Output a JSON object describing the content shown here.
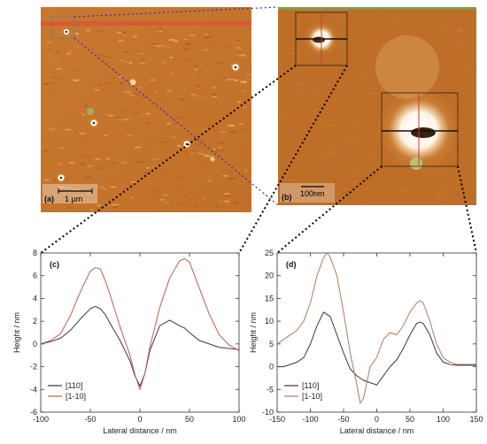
{
  "afm_images": {
    "a": {
      "panel_label": "(a)",
      "scale_bar": "1 µm"
    },
    "b": {
      "panel_label": "(b)",
      "scale_bar": "100nm"
    }
  },
  "colors": {
    "afm_base": "#c8782e",
    "afm_dark": "#a8561e",
    "zoom_link_blue": "#2b2bd0",
    "zoom_link_black": "#000000",
    "series_110": "#3a3a3a",
    "series_1_10": "#c55a4a",
    "series_1_10_d": "#b07a5a"
  },
  "chart_data": [
    {
      "type": "line",
      "panel_label": "(c)",
      "xlabel": "Lateral distance / nm",
      "ylabel": "Height / nm",
      "xlim": [
        -100,
        100
      ],
      "ylim": [
        -6,
        8
      ],
      "xticks": [
        -100,
        -50,
        0,
        50,
        100
      ],
      "yticks": [
        -6,
        -4,
        -2,
        0,
        2,
        4,
        6,
        8
      ],
      "legend_position": "bottom-left",
      "series": [
        {
          "name": "[110]",
          "x": [
            -100,
            -90,
            -80,
            -70,
            -60,
            -50,
            -45,
            -40,
            -35,
            -30,
            -20,
            -10,
            -5,
            0,
            5,
            10,
            20,
            30,
            40,
            45,
            50,
            60,
            70,
            80,
            90,
            100
          ],
          "y": [
            0,
            0.2,
            0.5,
            1.2,
            2.2,
            3.1,
            3.3,
            3.1,
            2.6,
            1.8,
            0.3,
            -1.5,
            -2.8,
            -3.7,
            -2.6,
            -0.6,
            1.6,
            2.1,
            1.6,
            1.4,
            1.0,
            0.3,
            0.0,
            -0.3,
            -0.4,
            -0.5
          ]
        },
        {
          "name": "[1-10]",
          "x": [
            -100,
            -90,
            -80,
            -70,
            -60,
            -50,
            -45,
            -40,
            -35,
            -30,
            -20,
            -10,
            -5,
            0,
            5,
            10,
            20,
            30,
            40,
            45,
            50,
            60,
            70,
            80,
            90,
            100
          ],
          "y": [
            0,
            0.3,
            0.9,
            2.5,
            4.6,
            6.4,
            6.7,
            6.6,
            5.6,
            4.3,
            1.5,
            -1.0,
            -2.7,
            -4.0,
            -2.6,
            -0.3,
            3.2,
            5.8,
            7.3,
            7.5,
            7.2,
            4.9,
            2.6,
            0.8,
            -0.1,
            -0.6
          ]
        }
      ]
    },
    {
      "type": "line",
      "panel_label": "(d)",
      "xlabel": "Lateral distance / nm",
      "ylabel": "Height / nm",
      "xlim": [
        -150,
        150
      ],
      "ylim": [
        -10,
        25
      ],
      "xticks": [
        -150,
        -100,
        -50,
        0,
        50,
        100,
        150
      ],
      "yticks": [
        -10,
        -5,
        0,
        5,
        10,
        15,
        20,
        25
      ],
      "legend_position": "bottom-left",
      "series": [
        {
          "name": "[110]",
          "x": [
            -150,
            -140,
            -130,
            -120,
            -110,
            -100,
            -90,
            -80,
            -70,
            -60,
            -50,
            -40,
            -30,
            -25,
            -20,
            -10,
            0,
            10,
            20,
            30,
            40,
            50,
            60,
            65,
            70,
            80,
            90,
            100,
            110,
            120,
            130,
            140,
            150
          ],
          "y": [
            0,
            0,
            0.5,
            1,
            2,
            5,
            9,
            12,
            11,
            7,
            3,
            -0.5,
            -2,
            -2.5,
            -3,
            -3.5,
            -4,
            -2,
            0,
            1.5,
            4,
            7,
            9.5,
            9.8,
            9.5,
            7,
            3,
            1,
            0.5,
            0.3,
            0.3,
            0.3,
            0.3
          ]
        },
        {
          "name": "[1-10]",
          "x": [
            -150,
            -140,
            -130,
            -120,
            -110,
            -100,
            -90,
            -80,
            -75,
            -70,
            -60,
            -50,
            -40,
            -30,
            -25,
            -20,
            -10,
            0,
            10,
            20,
            30,
            40,
            50,
            60,
            65,
            70,
            80,
            90,
            100,
            110,
            120,
            130,
            140,
            150
          ],
          "y": [
            5,
            6,
            7,
            8,
            10,
            14,
            20,
            24,
            25,
            24,
            20,
            12,
            3,
            -4,
            -8,
            -7,
            0,
            2,
            6,
            7.5,
            7,
            9,
            12,
            14,
            14.5,
            14,
            10,
            5,
            2,
            1,
            0.5,
            0.5,
            0.5,
            0.5
          ]
        }
      ]
    }
  ]
}
